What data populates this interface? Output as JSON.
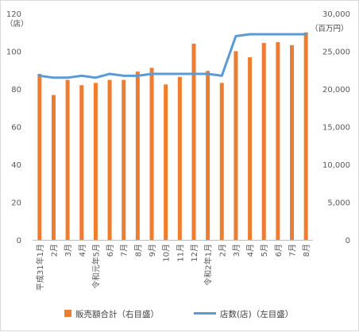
{
  "chart_data": {
    "type": "bar+line",
    "categories": [
      "平成31年1月",
      "2月",
      "3月",
      "4月",
      "令和元年5月",
      "6月",
      "7月",
      "8月",
      "9月",
      "10月",
      "11月",
      "12月",
      "令和2年1月",
      "2月",
      "3月",
      "4月",
      "5月",
      "6月",
      "7月",
      "8月"
    ],
    "series": [
      {
        "name": "販売額合計（右目盛）",
        "type": "bar",
        "axis": "right",
        "color": "#ED7D31",
        "values": [
          22000,
          19200,
          21200,
          20500,
          20800,
          21200,
          21200,
          22300,
          22800,
          20600,
          21600,
          26000,
          22400,
          20800,
          25000,
          24200,
          26100,
          26200,
          25800,
          27500
        ]
      },
      {
        "name": "店数(店)（左目盛）",
        "type": "line",
        "axis": "left",
        "color": "#5B9BD5",
        "values": [
          87,
          86,
          86,
          87,
          86,
          88,
          87,
          87,
          88,
          88,
          88,
          88,
          88,
          87,
          108,
          109,
          109,
          109,
          109,
          109
        ]
      }
    ],
    "left_axis": {
      "unit": "（店）",
      "ylim": [
        0,
        120
      ],
      "ticks": [
        "0",
        "20",
        "40",
        "60",
        "80",
        "100",
        "120"
      ]
    },
    "right_axis": {
      "unit": "（百万円）",
      "ylim": [
        0,
        30000
      ],
      "ticks": [
        "0",
        "5,000",
        "10,000",
        "15,000",
        "20,000",
        "25,000",
        "30,000"
      ]
    },
    "grid": false,
    "legend_position": "bottom"
  }
}
